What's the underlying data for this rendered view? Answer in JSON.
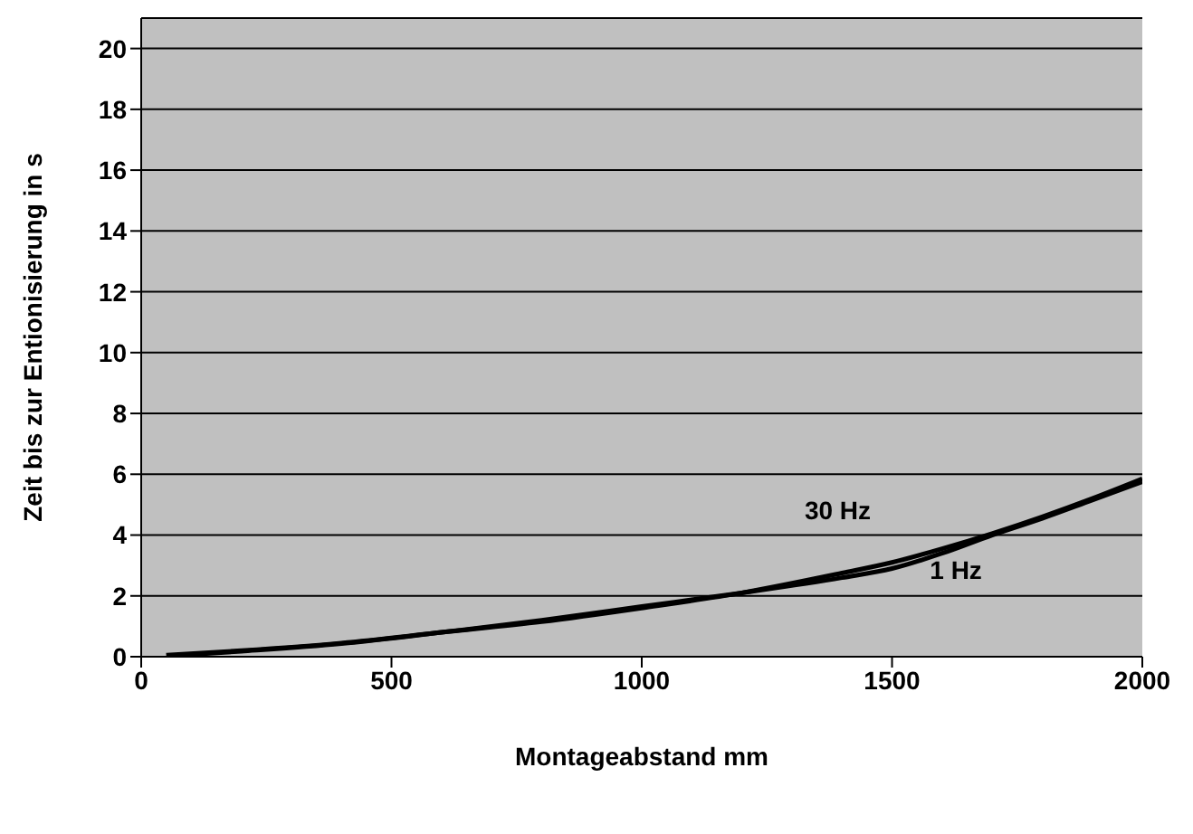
{
  "chart_data": {
    "type": "line",
    "xlabel": "Montageabstand mm",
    "ylabel": "Zeit bis zur Entionisierung in s",
    "xlim": [
      0,
      2000
    ],
    "xticks": [
      0,
      500,
      1000,
      1500,
      2000
    ],
    "ylim": [
      0,
      21
    ],
    "yticks": [
      0,
      2,
      4,
      6,
      8,
      10,
      12,
      14,
      16,
      18,
      20
    ],
    "grid": "y",
    "marker": "none",
    "line_style": "solid",
    "series": [
      {
        "name": "30 Hz",
        "color": "#000000",
        "x": [
          50,
          200,
          400,
          600,
          800,
          1000,
          1200,
          1400,
          1500,
          1600,
          1700,
          1800,
          1900,
          2000
        ],
        "values": [
          0.05,
          0.2,
          0.45,
          0.8,
          1.15,
          1.6,
          2.1,
          2.75,
          3.1,
          3.55,
          4.05,
          4.6,
          5.2,
          5.85
        ]
      },
      {
        "name": "1 Hz",
        "color": "#000000",
        "x": [
          60,
          200,
          400,
          600,
          800,
          1000,
          1200,
          1400,
          1500,
          1600,
          1700,
          1800,
          1900,
          2000
        ],
        "values": [
          0.03,
          0.18,
          0.43,
          0.8,
          1.2,
          1.65,
          2.1,
          2.6,
          2.9,
          3.4,
          4.0,
          4.55,
          5.15,
          5.75
        ]
      }
    ]
  }
}
